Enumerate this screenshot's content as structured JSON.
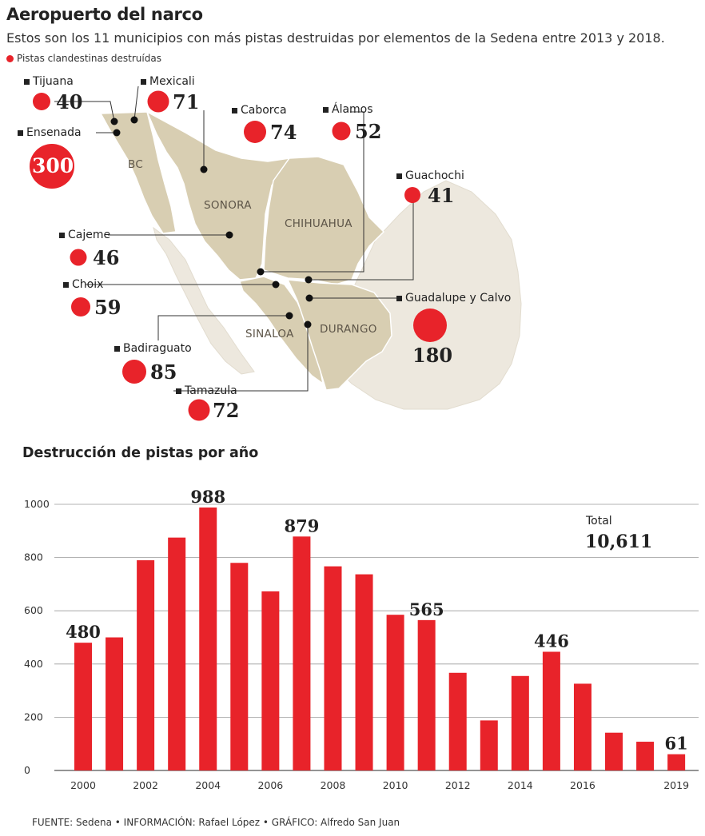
{
  "header": {
    "title": "Aeropuerto del narco",
    "subtitle": "Estos son los 11 municipios con más pistas destruidas por elementos de la Sedena entre 2013 y 2018.",
    "legend": "Pistas clandestinas destruídas"
  },
  "colors": {
    "accent": "#e8232a",
    "map_states": "#d8ceb2",
    "map_land": "#ede8de"
  },
  "map": {
    "states": [
      "BC",
      "SONORA",
      "CHIHUAHUA",
      "SINALOA",
      "DURANGO"
    ],
    "municipalities": [
      {
        "name": "Tijuana",
        "value": "40"
      },
      {
        "name": "Mexicali",
        "value": "71"
      },
      {
        "name": "Ensenada",
        "value": "300"
      },
      {
        "name": "Caborca",
        "value": "74"
      },
      {
        "name": "Álamos",
        "value": "52"
      },
      {
        "name": "Guachochi",
        "value": "41"
      },
      {
        "name": "Cajeme",
        "value": "46"
      },
      {
        "name": "Choix",
        "value": "59"
      },
      {
        "name": "Guadalupe y Calvo",
        "value": "180"
      },
      {
        "name": "Badiraguato",
        "value": "85"
      },
      {
        "name": "Tamazula",
        "value": "72"
      }
    ]
  },
  "chart_title": "Destrucción de pistas por año",
  "chart_data": {
    "type": "bar",
    "title": "Destrucción de pistas por año",
    "categories": [
      "2000",
      "2001",
      "2002",
      "2003",
      "2004",
      "2005",
      "2006",
      "2007",
      "2008",
      "2009",
      "2010",
      "2011",
      "2012",
      "2013",
      "2014",
      "2015",
      "2016",
      "2017",
      "2018",
      "2019"
    ],
    "values": [
      480,
      500,
      790,
      875,
      988,
      780,
      673,
      879,
      767,
      737,
      585,
      565,
      367,
      188,
      355,
      446,
      326,
      142,
      108,
      61
    ],
    "x_tick_labels": [
      "2000",
      "2002",
      "2004",
      "2006",
      "2008",
      "2010",
      "2012",
      "2014",
      "2016",
      "2019"
    ],
    "labeled": [
      {
        "category": "2000",
        "label": "480"
      },
      {
        "category": "2004",
        "label": "988"
      },
      {
        "category": "2007",
        "label": "879"
      },
      {
        "category": "2011",
        "label": "565"
      },
      {
        "category": "2015",
        "label": "446"
      },
      {
        "category": "2019",
        "label": "61"
      }
    ],
    "y_ticks": [
      0,
      200,
      400,
      600,
      800,
      1000
    ],
    "ylim": [
      0,
      1000
    ],
    "grid": true,
    "xlabel": "",
    "ylabel": "",
    "color": "#e8232a"
  },
  "total": {
    "label": "Total",
    "value": "10,611"
  },
  "source": "FUENTE: Sedena • INFORMACIÓN: Rafael López • GRÁFICO: Alfredo San Juan"
}
